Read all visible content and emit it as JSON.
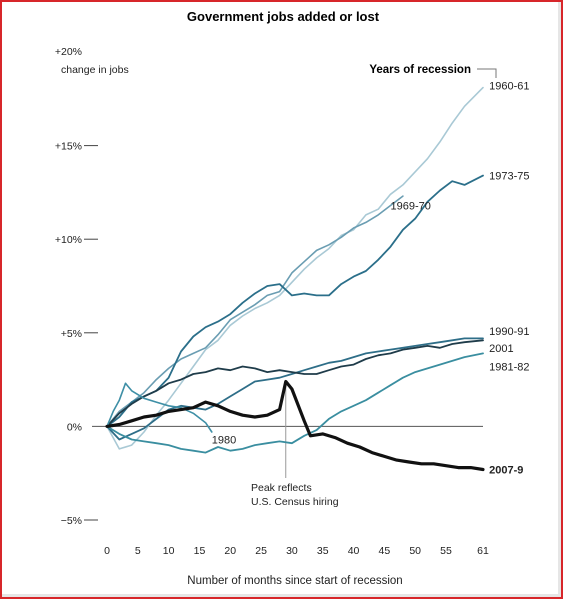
{
  "chart_data": {
    "type": "line",
    "title": "Government jobs added or lost",
    "ylabel": "change in jobs",
    "xlabel": "Number of months since start of recession",
    "legend_title": "Years of recession",
    "xlim": [
      0,
      61
    ],
    "ylim": [
      -5,
      20
    ],
    "x_ticks": [
      0,
      5,
      10,
      15,
      20,
      25,
      30,
      35,
      40,
      45,
      50,
      55,
      61
    ],
    "y_ticks": [
      {
        "value": 20,
        "label": "+20%"
      },
      {
        "value": 15,
        "label": "+15%"
      },
      {
        "value": 10,
        "label": "+10%"
      },
      {
        "value": 5,
        "label": "+5%"
      },
      {
        "value": 0,
        "label": "0%"
      },
      {
        "value": -5,
        "label": "−5%"
      }
    ],
    "annotation": {
      "line1": "Peak reflects",
      "line2": "U.S. Census hiring",
      "x": 29,
      "y": 2.4
    },
    "series": [
      {
        "name": "1960-61",
        "color": "#a9c9d5",
        "width": 1.6,
        "label_x": 62,
        "label_y": 18.2,
        "points": [
          [
            0,
            0
          ],
          [
            2,
            -1.2
          ],
          [
            4,
            -1.0
          ],
          [
            6,
            -0.3
          ],
          [
            8,
            0.6
          ],
          [
            10,
            1.4
          ],
          [
            12,
            2.3
          ],
          [
            14,
            3.2
          ],
          [
            16,
            4.1
          ],
          [
            18,
            4.6
          ],
          [
            20,
            5.4
          ],
          [
            22,
            5.9
          ],
          [
            24,
            6.3
          ],
          [
            26,
            6.6
          ],
          [
            28,
            7.0
          ],
          [
            30,
            7.7
          ],
          [
            32,
            8.4
          ],
          [
            34,
            9.0
          ],
          [
            36,
            9.5
          ],
          [
            38,
            10.2
          ],
          [
            40,
            10.5
          ],
          [
            42,
            11.3
          ],
          [
            44,
            11.6
          ],
          [
            46,
            12.4
          ],
          [
            48,
            12.9
          ],
          [
            50,
            13.6
          ],
          [
            52,
            14.3
          ],
          [
            54,
            15.2
          ],
          [
            56,
            16.2
          ],
          [
            58,
            17.1
          ],
          [
            61,
            18.1
          ]
        ]
      },
      {
        "name": "1969-70",
        "color": "#6a9db2",
        "width": 1.6,
        "label_x": 46,
        "label_y": 11.8,
        "points": [
          [
            0,
            0
          ],
          [
            2,
            0.8
          ],
          [
            4,
            1.3
          ],
          [
            6,
            1.8
          ],
          [
            8,
            2.5
          ],
          [
            10,
            3.1
          ],
          [
            12,
            3.6
          ],
          [
            14,
            3.9
          ],
          [
            16,
            4.2
          ],
          [
            18,
            4.9
          ],
          [
            20,
            5.7
          ],
          [
            22,
            6.1
          ],
          [
            24,
            6.5
          ],
          [
            26,
            7.0
          ],
          [
            28,
            7.2
          ],
          [
            30,
            8.2
          ],
          [
            32,
            8.8
          ],
          [
            34,
            9.4
          ],
          [
            36,
            9.7
          ],
          [
            38,
            10.1
          ],
          [
            40,
            10.6
          ],
          [
            42,
            10.9
          ],
          [
            44,
            11.3
          ],
          [
            46,
            11.8
          ],
          [
            48,
            12.3
          ]
        ]
      },
      {
        "name": "1973-75",
        "color": "#2b6f8a",
        "width": 1.8,
        "label_x": 62,
        "label_y": 13.4,
        "points": [
          [
            0,
            0
          ],
          [
            2,
            0.5
          ],
          [
            4,
            1.3
          ],
          [
            6,
            1.6
          ],
          [
            8,
            1.9
          ],
          [
            10,
            2.6
          ],
          [
            12,
            4.0
          ],
          [
            14,
            4.8
          ],
          [
            16,
            5.3
          ],
          [
            18,
            5.6
          ],
          [
            20,
            6.0
          ],
          [
            22,
            6.6
          ],
          [
            24,
            7.1
          ],
          [
            26,
            7.5
          ],
          [
            28,
            7.6
          ],
          [
            30,
            7.0
          ],
          [
            32,
            7.1
          ],
          [
            34,
            7.0
          ],
          [
            36,
            7.0
          ],
          [
            38,
            7.6
          ],
          [
            40,
            8.0
          ],
          [
            42,
            8.3
          ],
          [
            44,
            8.9
          ],
          [
            46,
            9.6
          ],
          [
            48,
            10.5
          ],
          [
            50,
            11.1
          ],
          [
            52,
            12.0
          ],
          [
            54,
            12.6
          ],
          [
            56,
            13.1
          ],
          [
            58,
            12.9
          ],
          [
            61,
            13.4
          ]
        ]
      },
      {
        "name": "1990-91",
        "color": "#2e6e88",
        "width": 1.8,
        "label_x": 62,
        "label_y": 5.1,
        "points": [
          [
            0,
            0
          ],
          [
            2,
            -0.7
          ],
          [
            4,
            -0.4
          ],
          [
            6,
            -0.1
          ],
          [
            8,
            0.4
          ],
          [
            10,
            0.9
          ],
          [
            12,
            1.1
          ],
          [
            14,
            1.0
          ],
          [
            16,
            0.9
          ],
          [
            18,
            1.2
          ],
          [
            20,
            1.6
          ],
          [
            22,
            2.0
          ],
          [
            24,
            2.4
          ],
          [
            26,
            2.5
          ],
          [
            28,
            2.6
          ],
          [
            30,
            2.8
          ],
          [
            32,
            3.0
          ],
          [
            34,
            3.2
          ],
          [
            36,
            3.4
          ],
          [
            38,
            3.5
          ],
          [
            40,
            3.7
          ],
          [
            42,
            3.9
          ],
          [
            44,
            4.0
          ],
          [
            46,
            4.1
          ],
          [
            48,
            4.2
          ],
          [
            50,
            4.3
          ],
          [
            52,
            4.4
          ],
          [
            54,
            4.5
          ],
          [
            56,
            4.6
          ],
          [
            58,
            4.7
          ],
          [
            61,
            4.7
          ]
        ]
      },
      {
        "name": "2001",
        "color": "#1f3c4a",
        "width": 1.8,
        "label_x": 62,
        "label_y": 4.2,
        "points": [
          [
            0,
            0
          ],
          [
            2,
            0.7
          ],
          [
            4,
            1.2
          ],
          [
            6,
            1.6
          ],
          [
            8,
            1.9
          ],
          [
            10,
            2.3
          ],
          [
            12,
            2.5
          ],
          [
            14,
            2.8
          ],
          [
            16,
            2.9
          ],
          [
            18,
            3.1
          ],
          [
            20,
            3.0
          ],
          [
            22,
            3.2
          ],
          [
            24,
            3.1
          ],
          [
            26,
            2.9
          ],
          [
            28,
            3.0
          ],
          [
            30,
            2.9
          ],
          [
            32,
            2.8
          ],
          [
            34,
            2.8
          ],
          [
            36,
            3.0
          ],
          [
            38,
            3.2
          ],
          [
            40,
            3.3
          ],
          [
            42,
            3.6
          ],
          [
            44,
            3.8
          ],
          [
            46,
            3.9
          ],
          [
            48,
            4.1
          ],
          [
            50,
            4.2
          ],
          [
            52,
            4.3
          ],
          [
            54,
            4.2
          ],
          [
            56,
            4.4
          ],
          [
            58,
            4.5
          ],
          [
            61,
            4.6
          ]
        ]
      },
      {
        "name": "1981-82",
        "color": "#3a8ea0",
        "width": 1.8,
        "label_x": 62,
        "label_y": 3.2,
        "points": [
          [
            0,
            0
          ],
          [
            2,
            -0.4
          ],
          [
            4,
            -0.7
          ],
          [
            6,
            -0.8
          ],
          [
            8,
            -0.9
          ],
          [
            10,
            -1.0
          ],
          [
            12,
            -1.2
          ],
          [
            14,
            -1.3
          ],
          [
            16,
            -1.4
          ],
          [
            18,
            -1.1
          ],
          [
            20,
            -1.3
          ],
          [
            22,
            -1.2
          ],
          [
            24,
            -1.0
          ],
          [
            26,
            -0.9
          ],
          [
            28,
            -0.8
          ],
          [
            30,
            -0.9
          ],
          [
            32,
            -0.5
          ],
          [
            34,
            -0.2
          ],
          [
            36,
            0.4
          ],
          [
            38,
            0.8
          ],
          [
            40,
            1.1
          ],
          [
            42,
            1.4
          ],
          [
            44,
            1.8
          ],
          [
            46,
            2.2
          ],
          [
            48,
            2.6
          ],
          [
            50,
            2.9
          ],
          [
            52,
            3.1
          ],
          [
            54,
            3.3
          ],
          [
            56,
            3.5
          ],
          [
            58,
            3.7
          ],
          [
            61,
            3.9
          ]
        ]
      },
      {
        "name": "1980",
        "color": "#3e8fa6",
        "width": 1.6,
        "label_x": 17,
        "label_y": -0.7,
        "points": [
          [
            0,
            0
          ],
          [
            1,
            0.8
          ],
          [
            2,
            1.4
          ],
          [
            3,
            2.3
          ],
          [
            4,
            1.9
          ],
          [
            6,
            1.5
          ],
          [
            8,
            1.3
          ],
          [
            10,
            1.1
          ],
          [
            12,
            1.0
          ],
          [
            14,
            0.7
          ],
          [
            16,
            0.2
          ],
          [
            17,
            -0.3
          ]
        ]
      },
      {
        "name": "2007-9",
        "color": "#111111",
        "width": 3.2,
        "bold": true,
        "label_x": 62,
        "label_y": -2.3,
        "points": [
          [
            0,
            0
          ],
          [
            2,
            0.1
          ],
          [
            4,
            0.3
          ],
          [
            6,
            0.5
          ],
          [
            8,
            0.6
          ],
          [
            10,
            0.8
          ],
          [
            12,
            0.9
          ],
          [
            14,
            1.0
          ],
          [
            16,
            1.3
          ],
          [
            18,
            1.1
          ],
          [
            20,
            0.8
          ],
          [
            22,
            0.6
          ],
          [
            24,
            0.5
          ],
          [
            26,
            0.6
          ],
          [
            28,
            0.9
          ],
          [
            29,
            2.4
          ],
          [
            30,
            2.0
          ],
          [
            32,
            0.3
          ],
          [
            33,
            -0.5
          ],
          [
            35,
            -0.4
          ],
          [
            37,
            -0.6
          ],
          [
            39,
            -0.9
          ],
          [
            41,
            -1.1
          ],
          [
            43,
            -1.4
          ],
          [
            45,
            -1.6
          ],
          [
            47,
            -1.8
          ],
          [
            49,
            -1.9
          ],
          [
            51,
            -2.0
          ],
          [
            53,
            -2.0
          ],
          [
            55,
            -2.1
          ],
          [
            57,
            -2.2
          ],
          [
            59,
            -2.2
          ],
          [
            61,
            -2.3
          ]
        ]
      }
    ]
  }
}
